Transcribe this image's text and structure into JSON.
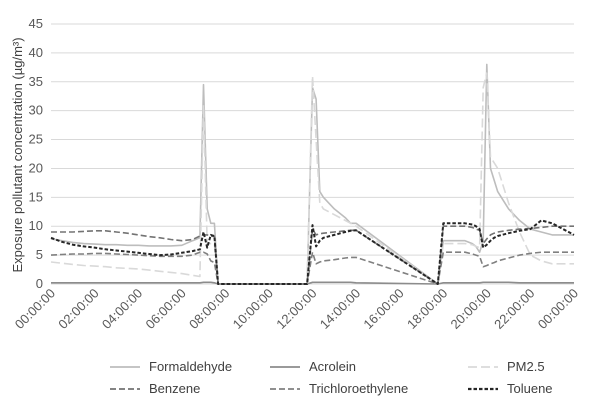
{
  "chart_data": {
    "type": "line",
    "title": "",
    "xlabel": "",
    "ylabel": "Exposure pollutant concentration (µg/m³)",
    "ylim": [
      0,
      45
    ],
    "yticks": [
      0,
      5,
      10,
      15,
      20,
      25,
      30,
      35,
      40,
      45
    ],
    "x": [
      "00:00:00",
      "00:30:00",
      "01:00:00",
      "01:30:00",
      "02:00:00",
      "02:30:00",
      "03:00:00",
      "03:30:00",
      "04:00:00",
      "04:30:00",
      "05:00:00",
      "05:30:00",
      "06:00:00",
      "06:30:00",
      "06:50:00",
      "07:00:00",
      "07:10:00",
      "07:20:00",
      "07:30:00",
      "07:40:00",
      "07:50:00",
      "08:00:00",
      "10:00:00",
      "11:45:00",
      "12:00:00",
      "12:10:00",
      "12:20:00",
      "12:30:00",
      "13:00:00",
      "13:30:00",
      "13:45:00",
      "14:00:00",
      "17:45:00",
      "18:00:00",
      "19:00:00",
      "19:20:00",
      "19:30:00",
      "19:40:00",
      "19:50:00",
      "20:00:00",
      "20:10:00",
      "20:20:00",
      "20:30:00",
      "21:00:00",
      "21:30:00",
      "22:00:00",
      "22:30:00",
      "23:00:00",
      "23:30:00",
      "00:00:00"
    ],
    "xticks": [
      "00:00:00",
      "02:00:00",
      "04:00:00",
      "06:00:00",
      "08:00:00",
      "10:00:00",
      "12:00:00",
      "14:00:00",
      "16:00:00",
      "18:00:00",
      "20:00:00",
      "22:00:00",
      "00:00:00"
    ],
    "grid": {
      "horizontal": true,
      "vertical": false
    },
    "legend_position": "bottom",
    "series": [
      {
        "name": "Formaldehyde",
        "color": "#bdbdbd",
        "dash": "solid",
        "values": [
          7.8,
          7.5,
          7.2,
          7,
          6.9,
          6.8,
          6.8,
          6.7,
          6.7,
          6.6,
          6.6,
          6.6,
          6.7,
          7.5,
          8,
          34.5,
          13,
          10.5,
          10.5,
          0,
          0,
          0,
          0,
          0,
          34,
          32,
          16,
          15,
          13,
          11.5,
          10.5,
          10.5,
          0,
          7.5,
          7.5,
          7,
          6.5,
          5.5,
          7.5,
          38,
          20,
          18,
          16,
          13,
          11,
          9.5,
          9,
          8.5,
          8.5,
          8.5
        ]
      },
      {
        "name": "Acrolein",
        "color": "#8c8c8c",
        "dash": "solid",
        "values": [
          0.2,
          0.2,
          0.2,
          0.2,
          0.2,
          0.2,
          0.2,
          0.2,
          0.2,
          0.2,
          0.2,
          0.2,
          0.2,
          0.2,
          0.2,
          0.3,
          0.3,
          0.3,
          0.2,
          0,
          0,
          0,
          0,
          0,
          0.3,
          0.3,
          0.3,
          0.3,
          0.3,
          0.3,
          0.3,
          0.2,
          0,
          0.2,
          0.2,
          0.2,
          0.2,
          0.2,
          0.3,
          0.3,
          0.3,
          0.3,
          0.3,
          0.3,
          0.2,
          0.2,
          0.2,
          0.2,
          0.2,
          0.2
        ]
      },
      {
        "name": "PM2.5",
        "color": "#d9d9d9",
        "dash": "long",
        "values": [
          3.8,
          3.6,
          3.4,
          3.2,
          3.1,
          3,
          2.8,
          2.7,
          2.6,
          2.4,
          2.2,
          2,
          1.8,
          1.5,
          1.3,
          31,
          7,
          7,
          7,
          0,
          0,
          0,
          0,
          0,
          36,
          25,
          14,
          13,
          12,
          11,
          10.5,
          10,
          0,
          7,
          7,
          6.8,
          6.5,
          6.3,
          34,
          36.5,
          22,
          21,
          20,
          14,
          9,
          5,
          4,
          3.5,
          3.5,
          3.5
        ]
      },
      {
        "name": "Benzene",
        "color": "#737373",
        "dash": "medium",
        "values": [
          9,
          9,
          9,
          9.1,
          9.2,
          9.2,
          9,
          8.8,
          8.5,
          8.2,
          8,
          7.7,
          7.5,
          7.7,
          8.3,
          8.5,
          8.5,
          8.3,
          8.2,
          0,
          0,
          0,
          0,
          0,
          9.5,
          8.5,
          8.7,
          8.8,
          9,
          9.2,
          9.3,
          9.3,
          0,
          10,
          10,
          9.8,
          9.5,
          9.3,
          7,
          7.8,
          8.5,
          8.8,
          9,
          9.3,
          9.5,
          9.6,
          9.8,
          10,
          10,
          10
        ]
      },
      {
        "name": "Trichloroethylene",
        "color": "#808080",
        "dash": "medium",
        "values": [
          5,
          5.1,
          5.2,
          5.2,
          5.3,
          5.3,
          5.2,
          5.1,
          5,
          4.9,
          4.8,
          4.8,
          4.8,
          5,
          5.5,
          5.5,
          5.2,
          4,
          3.7,
          0,
          0,
          0,
          0,
          0,
          5.5,
          3.5,
          3.8,
          4,
          4.2,
          4.5,
          4.6,
          4.6,
          0,
          5.5,
          5.5,
          5.2,
          5,
          4.8,
          3,
          3.2,
          3.5,
          3.7,
          4,
          4.5,
          5,
          5.3,
          5.5,
          5.5,
          5.5,
          5.5
        ]
      },
      {
        "name": "Toluene",
        "color": "#262626",
        "dash": "short",
        "values": [
          8,
          7.3,
          6.8,
          6.5,
          6.3,
          6,
          5.8,
          5.6,
          5.4,
          5.2,
          5,
          5.1,
          5.4,
          5.7,
          6,
          9,
          6.3,
          8.5,
          8.3,
          0,
          0,
          0,
          0,
          0,
          10.2,
          6.5,
          7.5,
          8,
          8.5,
          9,
          9.2,
          9.3,
          0,
          10.5,
          10.5,
          10.3,
          10,
          9.5,
          6.3,
          6.8,
          7.5,
          8,
          8.3,
          8.8,
          9.2,
          9.5,
          11,
          10.5,
          9.5,
          8.5
        ]
      }
    ]
  }
}
